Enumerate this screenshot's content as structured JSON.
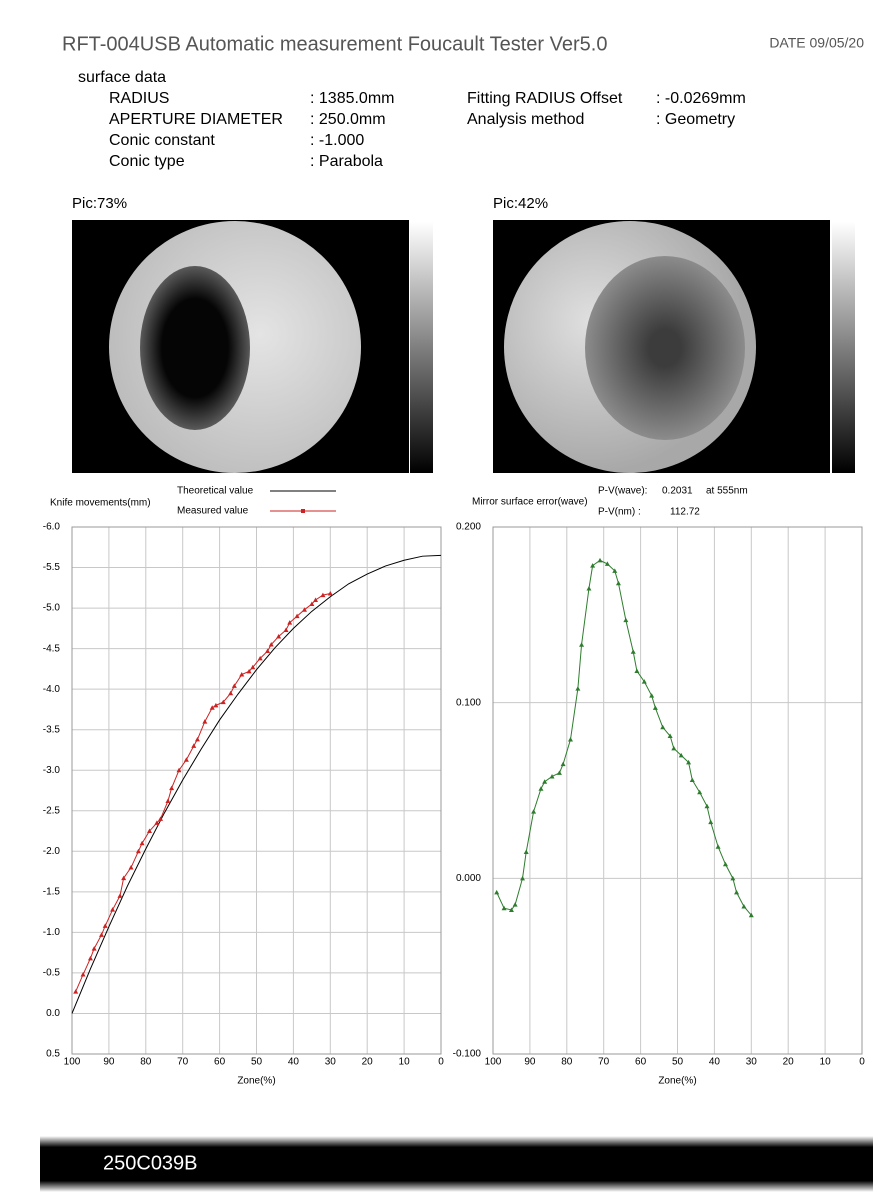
{
  "header": {
    "title": "RFT-004USB Automatic measurement Foucault Tester Ver5.0",
    "date": "DATE 09/05/20"
  },
  "surface": {
    "title": "surface data",
    "left": [
      {
        "label": "RADIUS",
        "value": ":  1385.0mm"
      },
      {
        "label": "APERTURE DIAMETER",
        "value": ":   250.0mm"
      },
      {
        "label": "Conic constant",
        "value": ":  -1.000"
      },
      {
        "label": "Conic type",
        "value": ":  Parabola"
      }
    ],
    "right": [
      {
        "label": "Fitting RADIUS Offset",
        "value": ": -0.0269mm"
      },
      {
        "label": "Analysis method",
        "value": ":  Geometry"
      }
    ]
  },
  "pictures": [
    "Pic:73%",
    "Pic:42%"
  ],
  "footer": "250C039B",
  "chart_data": [
    {
      "type": "line",
      "y_label": "Knife movements(mm)",
      "x_label": "Zone(%)",
      "xlim": [
        100,
        0
      ],
      "xticks": [
        100,
        90,
        80,
        70,
        60,
        50,
        40,
        30,
        20,
        10,
        0
      ],
      "ylim": [
        0.5,
        -6.0
      ],
      "yticks": [
        {
          "value": -6.0,
          "label": "-6.0"
        },
        {
          "value": -5.5,
          "label": "-5.5"
        },
        {
          "value": -5.0,
          "label": "-5.0"
        },
        {
          "value": -4.5,
          "label": "-4.5"
        },
        {
          "value": -4.0,
          "label": "-4.0"
        },
        {
          "value": -3.5,
          "label": "-3.5"
        },
        {
          "value": -3.0,
          "label": "-3.0"
        },
        {
          "value": -2.5,
          "label": "-2.5"
        },
        {
          "value": -2.0,
          "label": "-2.0"
        },
        {
          "value": -1.5,
          "label": "-1.5"
        },
        {
          "value": -1.0,
          "label": "-1.0"
        },
        {
          "value": -0.5,
          "label": "-0.5"
        },
        {
          "value": 0.0,
          "label": "0.0"
        },
        {
          "value": 0.5,
          "label": "0.5"
        }
      ],
      "grid": true,
      "series": [
        {
          "name": "Theoretical value",
          "color": "#000000",
          "markers": false,
          "x": [
            100,
            95,
            90,
            85,
            80,
            75,
            70,
            65,
            60,
            55,
            50,
            45,
            40,
            35,
            30,
            25,
            20,
            15,
            10,
            5,
            0
          ],
          "values": [
            0,
            -0.55,
            -1.07,
            -1.57,
            -2.03,
            -2.47,
            -2.88,
            -3.26,
            -3.62,
            -3.94,
            -4.24,
            -4.51,
            -4.75,
            -4.96,
            -5.14,
            -5.3,
            -5.42,
            -5.52,
            -5.59,
            -5.64,
            -5.65
          ]
        },
        {
          "name": "Measured value",
          "color": "#cc2222",
          "markers": true,
          "x": [
            99,
            97,
            95,
            94,
            92,
            91,
            89,
            87,
            86,
            84,
            82,
            81,
            79,
            77,
            76,
            74,
            73,
            71,
            69,
            67,
            66,
            64,
            62,
            61,
            59,
            57,
            56,
            54,
            52,
            51,
            49,
            47,
            46,
            44,
            42,
            41,
            39,
            37,
            35,
            34,
            32,
            30
          ],
          "values": [
            -0.27,
            -0.48,
            -0.68,
            -0.8,
            -0.97,
            -1.08,
            -1.28,
            -1.45,
            -1.67,
            -1.8,
            -2.0,
            -2.1,
            -2.25,
            -2.35,
            -2.4,
            -2.62,
            -2.78,
            -3.0,
            -3.13,
            -3.3,
            -3.38,
            -3.6,
            -3.77,
            -3.8,
            -3.84,
            -3.95,
            -4.04,
            -4.18,
            -4.22,
            -4.27,
            -4.38,
            -4.47,
            -4.55,
            -4.65,
            -4.73,
            -4.82,
            -4.9,
            -4.98,
            -5.05,
            -5.1,
            -5.16,
            -5.18
          ]
        }
      ]
    },
    {
      "type": "line",
      "y_label": "Mirror surface error(wave)",
      "x_label": "Zone(%)",
      "annotations": {
        "pv_wave_label": "P-V(wave):",
        "pv_wave": "0.2031",
        "wavelength": "at 555nm",
        "pv_nm_label": "P-V(nm)   :",
        "pv_nm": "112.72"
      },
      "xlim": [
        100,
        0
      ],
      "xticks": [
        100,
        90,
        80,
        70,
        60,
        50,
        40,
        30,
        20,
        10,
        0
      ],
      "ylim": [
        -0.1,
        0.2
      ],
      "yticks": [
        {
          "value": -0.1,
          "label": "-0.100"
        },
        {
          "value": 0.0,
          "label": "0.000"
        },
        {
          "value": 0.1,
          "label": "0.100"
        },
        {
          "value": 0.2,
          "label": "0.200"
        }
      ],
      "grid": true,
      "series": [
        {
          "color": "#2e7d2e",
          "markers": true,
          "x": [
            99,
            97,
            95,
            94,
            92,
            91,
            89,
            87,
            86,
            84,
            82,
            81,
            79,
            77,
            76,
            74,
            73,
            71,
            69,
            67,
            66,
            64,
            62,
            61,
            59,
            57,
            56,
            54,
            52,
            51,
            49,
            47,
            46,
            44,
            42,
            41,
            39,
            37,
            35,
            34,
            32,
            30
          ],
          "values": [
            -0.008,
            -0.017,
            -0.018,
            -0.015,
            0.0,
            0.015,
            0.038,
            0.051,
            0.055,
            0.058,
            0.06,
            0.065,
            0.079,
            0.108,
            0.133,
            0.165,
            0.178,
            0.181,
            0.179,
            0.175,
            0.168,
            0.147,
            0.129,
            0.118,
            0.112,
            0.104,
            0.097,
            0.086,
            0.081,
            0.074,
            0.07,
            0.066,
            0.056,
            0.049,
            0.041,
            0.032,
            0.018,
            0.008,
            0.0,
            -0.008,
            -0.016,
            -0.021
          ]
        }
      ]
    }
  ]
}
